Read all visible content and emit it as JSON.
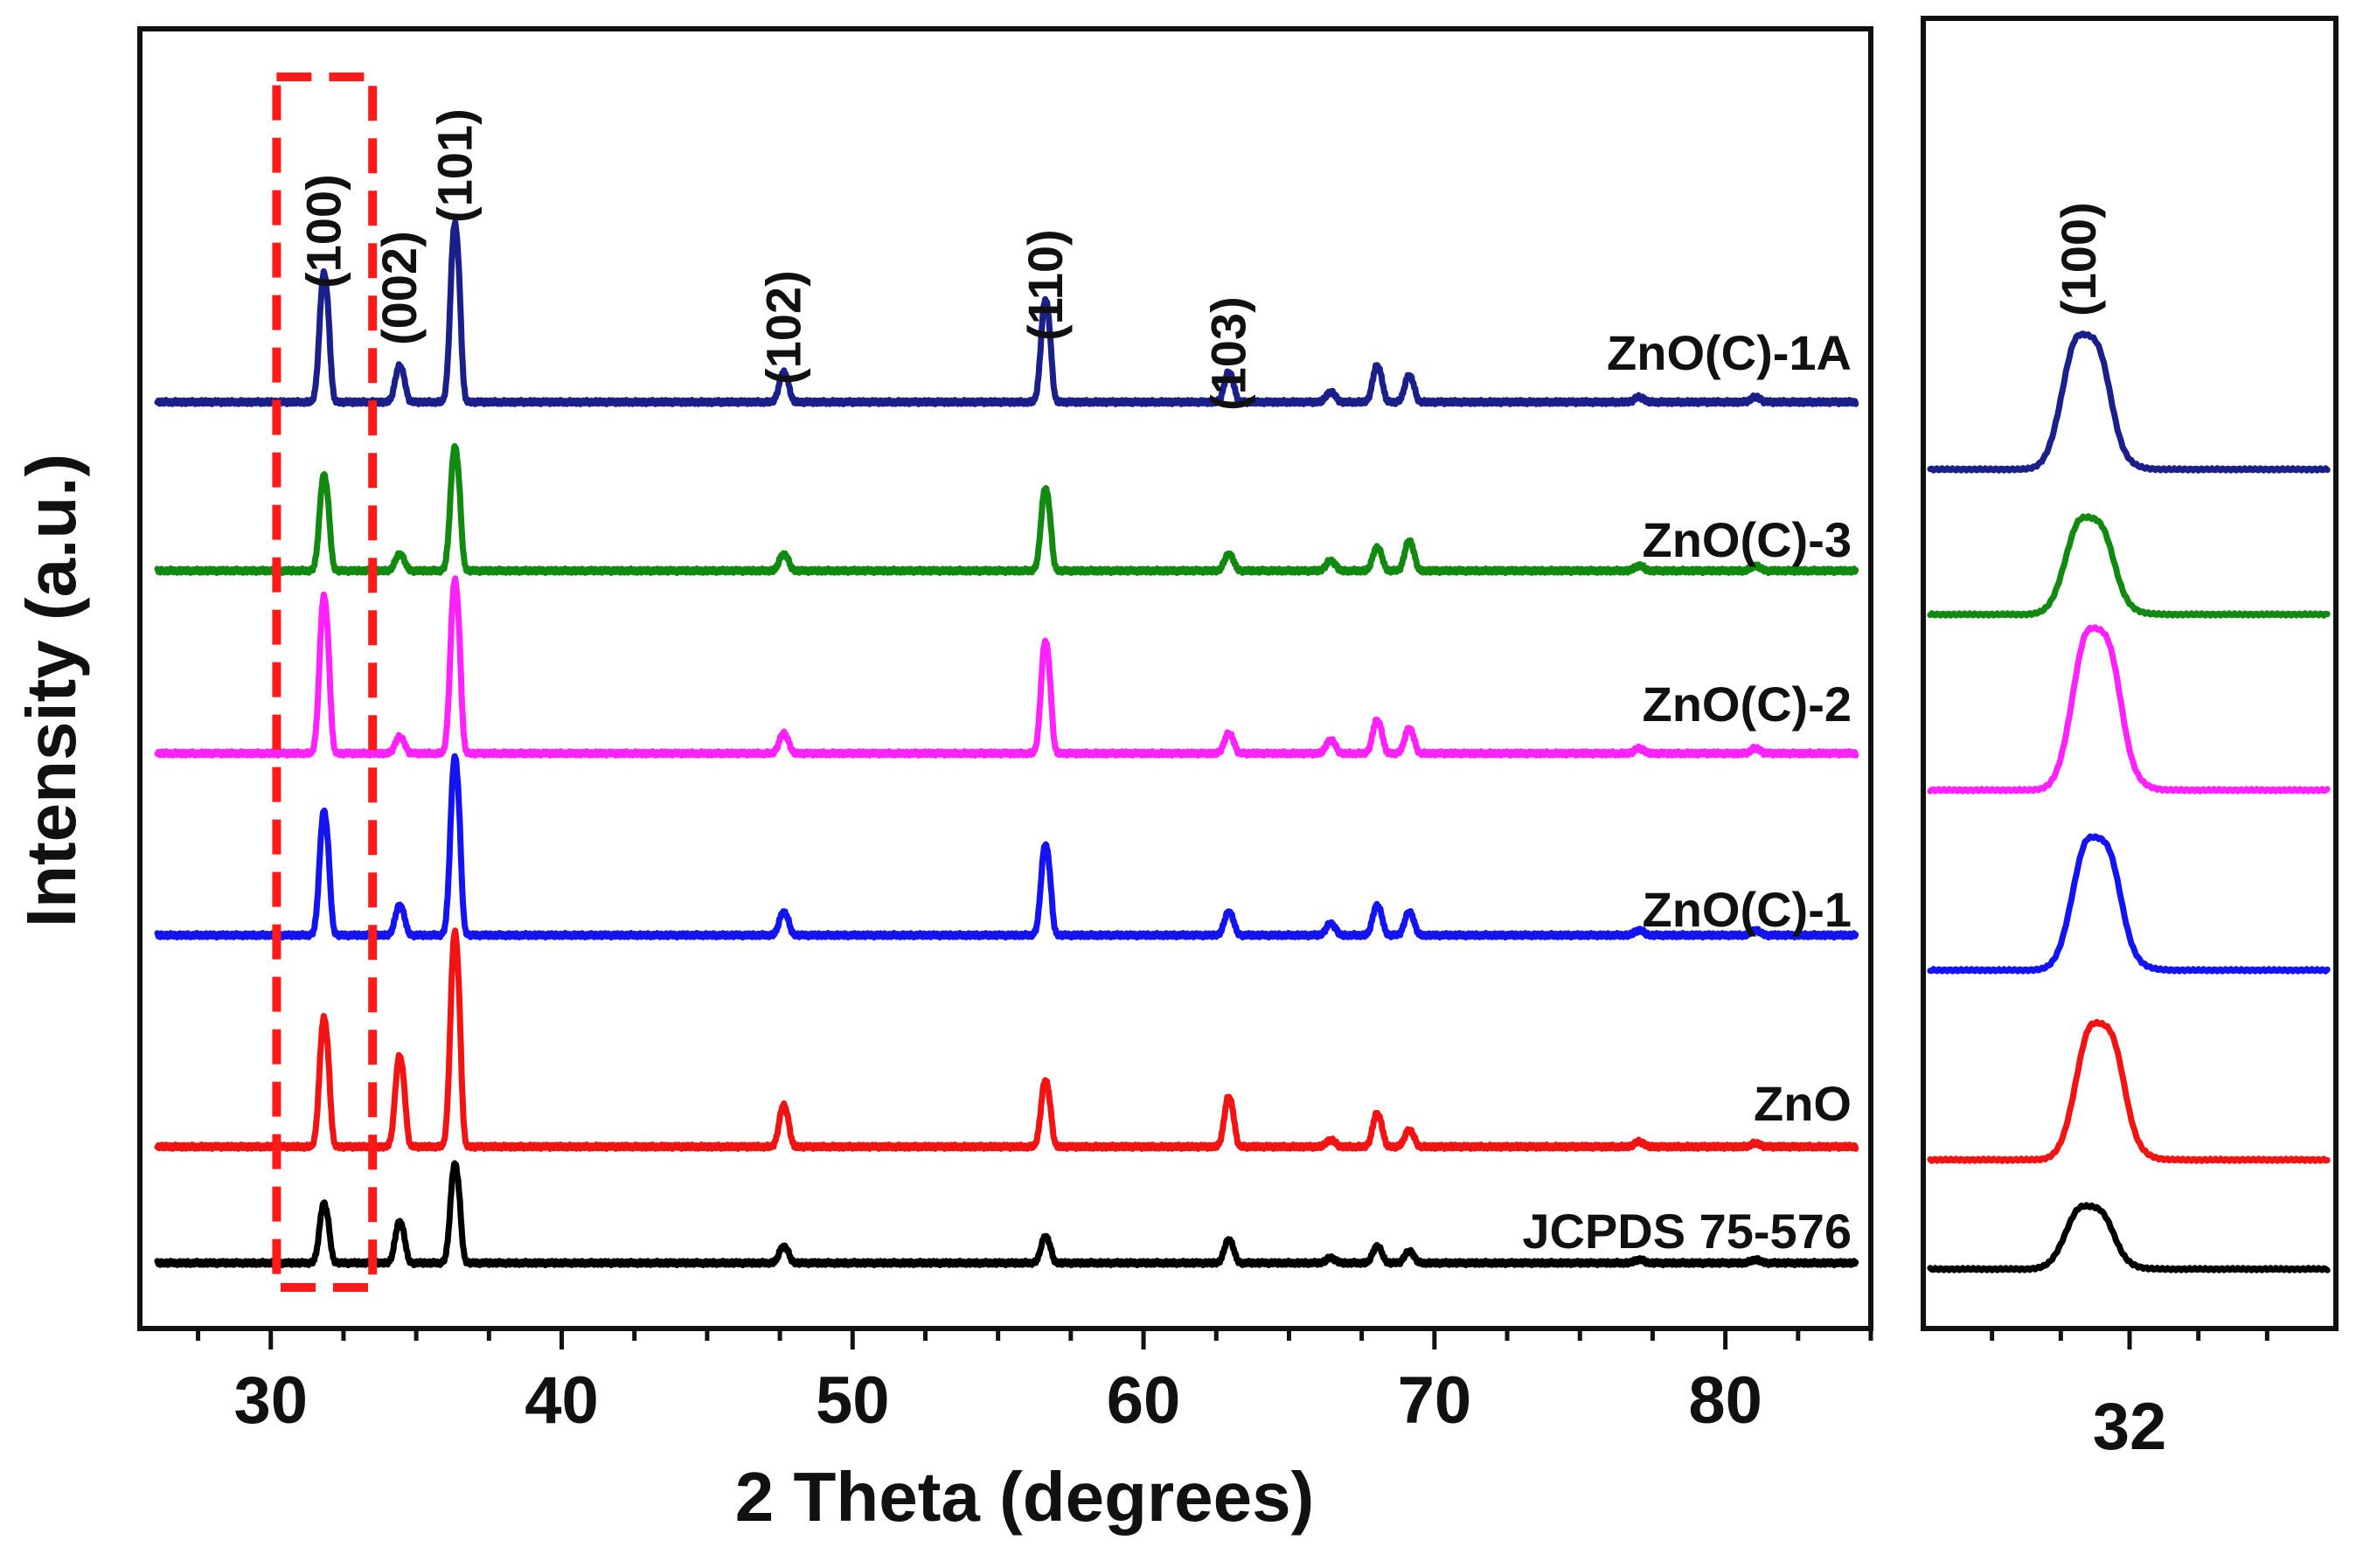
{
  "chart_data": [
    {
      "type": "line",
      "panel": "main",
      "xlabel": "2 Theta (degrees)",
      "ylabel": "Intensity (a.u.)",
      "xlim": [
        25.5,
        85
      ],
      "xticks": [
        30,
        40,
        50,
        60,
        70,
        80
      ],
      "xtick_labels": [
        "30",
        "40",
        "50",
        "60",
        "70",
        "80"
      ],
      "peak_labels": [
        {
          "text": "(100)",
          "x": 31.8
        },
        {
          "text": "(002)",
          "x": 34.4
        },
        {
          "text": "(101)",
          "x": 36.3
        },
        {
          "text": "(102)",
          "x": 47.6
        },
        {
          "text": "(110)",
          "x": 56.6
        },
        {
          "text": "(103)",
          "x": 62.9
        }
      ],
      "highlight_box": {
        "x_range": [
          30.2,
          33.5
        ],
        "style": "red dashed rectangle"
      },
      "peak_positions": [
        31.8,
        34.4,
        36.3,
        47.6,
        56.6,
        62.9,
        66.4,
        68.0,
        69.1,
        77.0,
        81.0
      ],
      "series": [
        {
          "name": "ZnO(C)-1A",
          "color": "#1b1f8a",
          "offset": 5,
          "peak_heights": [
            78,
            22,
            108,
            18,
            62,
            18,
            6,
            22,
            16,
            3,
            3
          ]
        },
        {
          "name": "ZnO(C)-3",
          "color": "#128a12",
          "offset": 4,
          "peak_heights": [
            58,
            10,
            75,
            10,
            50,
            10,
            6,
            14,
            18,
            3,
            3
          ]
        },
        {
          "name": "ZnO(C)-2",
          "color": "#ff22ff",
          "offset": 3,
          "peak_heights": [
            95,
            10,
            105,
            12,
            68,
            12,
            8,
            20,
            15,
            3,
            3
          ]
        },
        {
          "name": "ZnO(C)-1",
          "color": "#1414f0",
          "offset": 2,
          "peak_heights": [
            75,
            18,
            108,
            14,
            55,
            14,
            7,
            18,
            14,
            3,
            3
          ]
        },
        {
          "name": "ZnO",
          "color": "#f01414",
          "offset": 1,
          "peak_heights": [
            78,
            55,
            130,
            25,
            40,
            30,
            4,
            20,
            10,
            3,
            2
          ]
        },
        {
          "name": "JCPDS 75-576",
          "color": "#000000",
          "offset": 0,
          "peak_heights": [
            36,
            25,
            60,
            10,
            16,
            14,
            3,
            10,
            7,
            2,
            2
          ]
        }
      ]
    },
    {
      "type": "line",
      "panel": "inset",
      "xlim": [
        31.4,
        32.6
      ],
      "xticks": [
        32
      ],
      "xtick_labels": [
        "32"
      ],
      "peak_label": "(100)",
      "series": [
        {
          "name": "ZnO(C)-1A",
          "color": "#1b1f8a",
          "peak_center": 31.85,
          "peak_height": 150
        },
        {
          "name": "ZnO(C)-3",
          "color": "#128a12",
          "peak_center": 31.86,
          "peak_height": 108
        },
        {
          "name": "ZnO(C)-2",
          "color": "#ff22ff",
          "peak_center": 31.88,
          "peak_height": 180
        },
        {
          "name": "ZnO(C)-1",
          "color": "#1414f0",
          "peak_center": 31.88,
          "peak_height": 148
        },
        {
          "name": "ZnO",
          "color": "#f01414",
          "peak_center": 31.89,
          "peak_height": 152
        },
        {
          "name": "JCPDS 75-576",
          "color": "#000000",
          "peak_center": 31.86,
          "peak_height": 70
        }
      ]
    }
  ]
}
